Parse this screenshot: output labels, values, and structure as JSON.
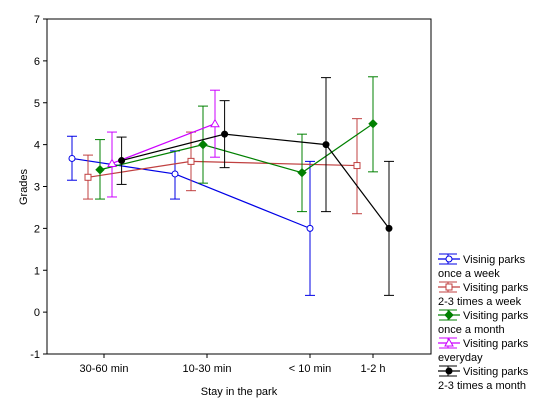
{
  "chart_data": {
    "type": "line",
    "xlabel": "Stay in the park",
    "ylabel": "Grades",
    "ylim": [
      -1,
      7
    ],
    "yticks": [
      -1,
      0,
      1,
      2,
      3,
      4,
      5,
      6,
      7
    ],
    "categories": [
      "30-60 min",
      "10-30 min",
      "< 10 min",
      "1-2 h"
    ],
    "grid": false,
    "legend_position": "bottom-right",
    "series": [
      {
        "name_lines": [
          "Visinig parks",
          "once a week"
        ],
        "color": "#0000e6",
        "marker": "circle",
        "points": [
          {
            "category": "30-60 min",
            "offset": -0.4,
            "mean": 3.67,
            "low": 3.15,
            "high": 4.2
          },
          {
            "category": "10-30 min",
            "offset": -0.4,
            "mean": 3.3,
            "low": 2.7,
            "high": 3.85
          },
          {
            "category": "< 10 min",
            "offset": 0.0,
            "mean": 2.0,
            "low": 0.4,
            "high": 3.6
          }
        ]
      },
      {
        "name_lines": [
          "Visiting parks",
          "2-3 times a week"
        ],
        "color": "#c04040",
        "marker": "square",
        "points": [
          {
            "category": "30-60 min",
            "offset": -0.2,
            "mean": 3.22,
            "low": 2.7,
            "high": 3.75
          },
          {
            "category": "10-30 min",
            "offset": -0.2,
            "mean": 3.6,
            "low": 2.9,
            "high": 4.3
          },
          {
            "category": "1-2 h",
            "offset": -0.2,
            "mean": 3.5,
            "low": 2.35,
            "high": 4.62
          }
        ]
      },
      {
        "name_lines": [
          "Visiting parks",
          "once a month"
        ],
        "color": "#008000",
        "marker": "diamond",
        "points": [
          {
            "category": "30-60 min",
            "offset": -0.05,
            "mean": 3.4,
            "low": 2.7,
            "high": 4.12
          },
          {
            "category": "10-30 min",
            "offset": -0.05,
            "mean": 4.0,
            "low": 3.08,
            "high": 4.92
          },
          {
            "category": "< 10 min",
            "offset": -0.1,
            "mean": 3.33,
            "low": 2.4,
            "high": 4.25
          },
          {
            "category": "1-2 h",
            "offset": 0.0,
            "mean": 4.5,
            "low": 3.35,
            "high": 5.62
          }
        ]
      },
      {
        "name_lines": [
          "Visiting parks",
          "everyday"
        ],
        "color": "#cc00ff",
        "marker": "triangle",
        "points": [
          {
            "category": "30-60 min",
            "offset": 0.1,
            "mean": 3.55,
            "low": 2.75,
            "high": 4.3
          },
          {
            "category": "10-30 min",
            "offset": 0.1,
            "mean": 4.5,
            "low": 3.7,
            "high": 5.3
          }
        ]
      },
      {
        "name_lines": [
          "Visiting parks",
          "2-3 times a month"
        ],
        "color": "#000000",
        "marker": "circle-filled",
        "points": [
          {
            "category": "30-60 min",
            "offset": 0.22,
            "mean": 3.62,
            "low": 3.05,
            "high": 4.18
          },
          {
            "category": "10-30 min",
            "offset": 0.22,
            "mean": 4.25,
            "low": 3.45,
            "high": 5.05
          },
          {
            "category": "< 10 min",
            "offset": 0.2,
            "mean": 4.0,
            "low": 2.4,
            "high": 5.6
          },
          {
            "category": "1-2 h",
            "offset": 0.2,
            "mean": 2.0,
            "low": 0.4,
            "high": 3.6
          }
        ]
      }
    ]
  }
}
